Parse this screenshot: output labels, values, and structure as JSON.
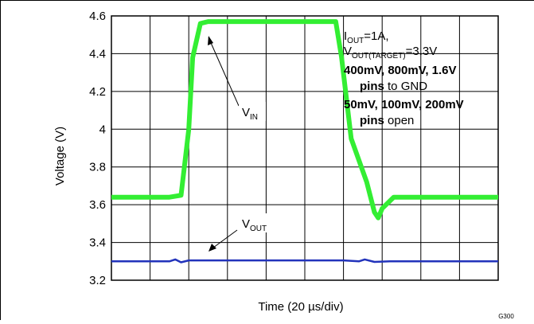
{
  "chart_data": {
    "type": "line",
    "figure_id": "G300",
    "xlabel": "Time (20 µs/div)",
    "ylabel": "Voltage (V)",
    "x_units": "divisions (20 µs/div)",
    "xlim": [
      0,
      10
    ],
    "ylim": [
      3.2,
      4.6
    ],
    "y_ticks": [
      "3.2",
      "3.4",
      "3.6",
      "3.8",
      "4",
      "4.2",
      "4.4",
      "4.6"
    ],
    "grid": true,
    "conditions": {
      "line1_main": "I",
      "line1_sub": "OUT",
      "line1_rest": "=1A,",
      "line2_main": "V",
      "line2_sub": "OUT(TARGET)",
      "line2_rest": "=3.3V",
      "line3": "400mV, 800mV, 1.6V",
      "line4_bold": "pins",
      "line4_rest": " to GND",
      "line5": "50mV, 100mV, 200mV",
      "line6_bold": "pins",
      "line6_rest": " open"
    },
    "series": [
      {
        "label_main": "V",
        "label_sub": "IN",
        "color": "#33ee33",
        "x": [
          0,
          1.0,
          1.5,
          1.8,
          2.0,
          2.1,
          2.3,
          2.5,
          3.0,
          4.0,
          5.0,
          5.8,
          5.95,
          6.2,
          6.6,
          6.8,
          6.9,
          7.0,
          7.3,
          8.0,
          9.0,
          10.0
        ],
        "y": [
          3.64,
          3.64,
          3.64,
          3.65,
          4.0,
          4.38,
          4.56,
          4.57,
          4.57,
          4.57,
          4.57,
          4.57,
          4.38,
          3.95,
          3.72,
          3.56,
          3.53,
          3.58,
          3.64,
          3.64,
          3.64,
          3.64
        ]
      },
      {
        "label_main": "V",
        "label_sub": "OUT",
        "color": "#2233bb",
        "x": [
          0,
          1.0,
          1.5,
          1.65,
          1.8,
          2.0,
          2.5,
          4.0,
          6.0,
          6.4,
          6.55,
          6.8,
          7.2,
          8.0,
          10.0
        ],
        "y": [
          3.3,
          3.3,
          3.3,
          3.31,
          3.295,
          3.305,
          3.305,
          3.305,
          3.305,
          3.3,
          3.31,
          3.297,
          3.3,
          3.3,
          3.3
        ]
      }
    ]
  }
}
